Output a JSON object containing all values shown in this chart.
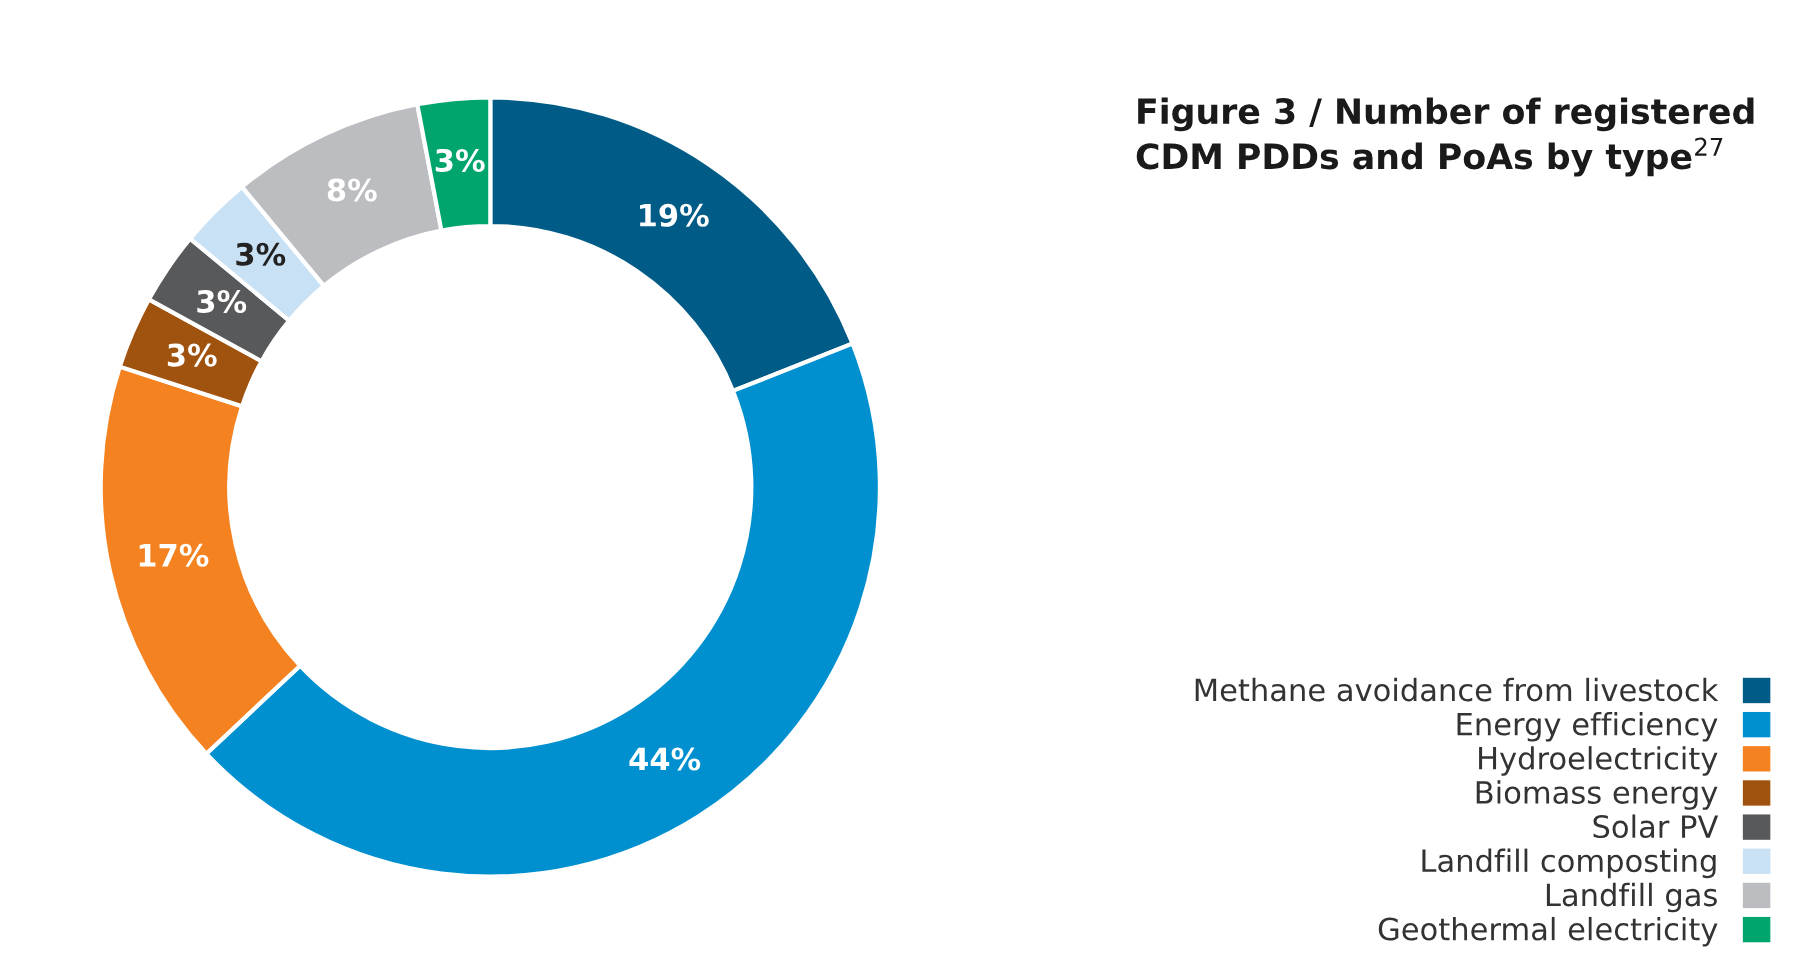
{
  "chart_data": {
    "type": "donut",
    "title": "Figure 3 / Number of registered\nCDM PDDs and PoAs by type$^{27}$",
    "categories": [
      "Methane avoidance from livestock",
      "Energy efficiency",
      "Hydroelectricity",
      "Biomass energy",
      "Solar PV",
      "Landfill composting",
      "Landfill gas",
      "Geothermal electricity"
    ],
    "values": [
      19,
      44,
      17,
      3,
      3,
      3,
      8,
      3
    ],
    "colors": [
      "#005b87",
      "#0090d0",
      "#f58220",
      "#a0520f",
      "#58595b",
      "#c9e1f5",
      "#bcbdc0",
      "#00a56d"
    ],
    "value_labels": [
      "19%",
      "44%",
      "17%",
      "3%",
      "3%",
      "3%",
      "8%",
      "3%"
    ],
    "legend": "bottom right"
  }
}
